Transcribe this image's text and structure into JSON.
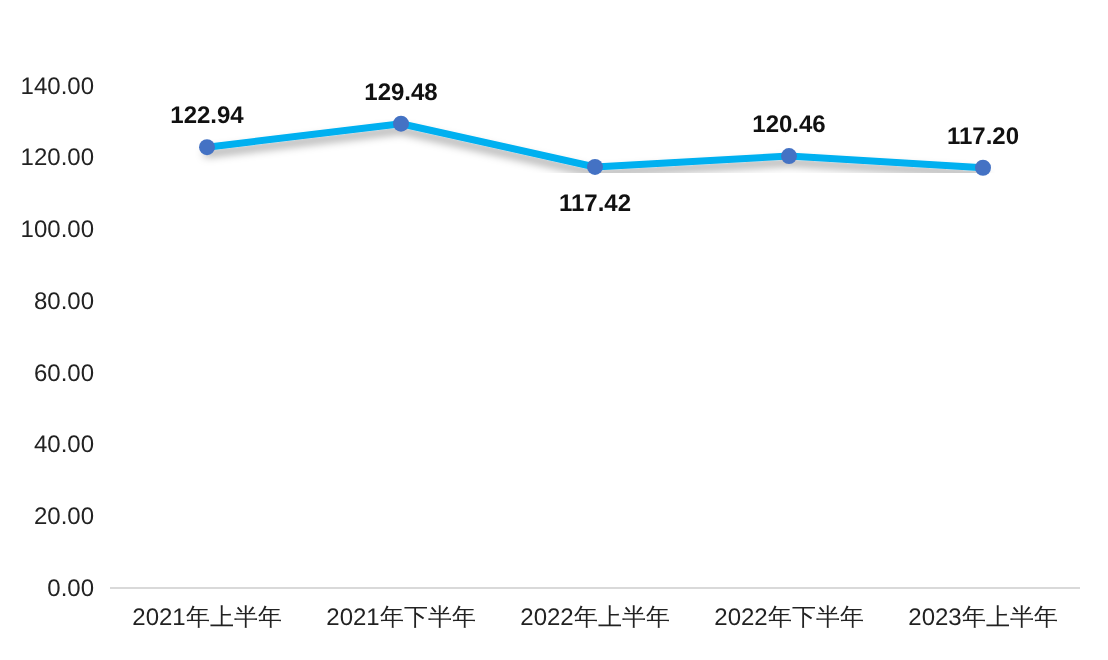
{
  "chart_data": {
    "type": "line",
    "categories": [
      "2021年上半年",
      "2021年下半年",
      "2022年上半年",
      "2022年下半年",
      "2023年上半年"
    ],
    "series": [
      {
        "color": "#00b0f0",
        "values": [
          122.94,
          129.48,
          117.42,
          120.46,
          117.2
        ],
        "value_labels": [
          "122.94",
          "129.48",
          "117.42",
          "120.46",
          "117.20"
        ]
      }
    ],
    "ylim": [
      0,
      140
    ],
    "yticks": [
      {
        "value": 0,
        "label": "0.00"
      },
      {
        "value": 20,
        "label": "20.00"
      },
      {
        "value": 40,
        "label": "40.00"
      },
      {
        "value": 60,
        "label": "60.00"
      },
      {
        "value": 80,
        "label": "80.00"
      },
      {
        "value": 100,
        "label": "100.00"
      },
      {
        "value": 120,
        "label": "120.00"
      },
      {
        "value": 140,
        "label": "140.00"
      }
    ],
    "marker": "circle",
    "grid": false
  }
}
